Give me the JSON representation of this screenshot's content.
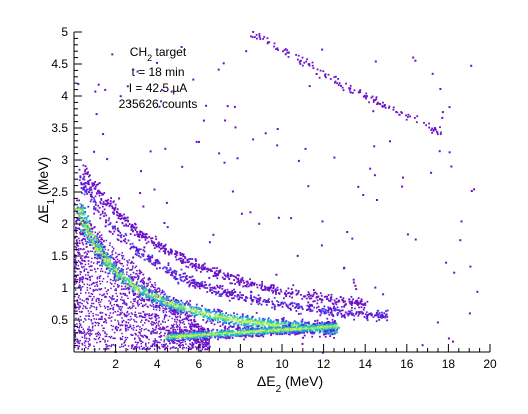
{
  "chart_data": {
    "type": "heatmap",
    "title": "",
    "xlabel": {
      "main": "ΔE",
      "sub": "2",
      "unit": " (MeV)"
    },
    "ylabel": {
      "main": "ΔE",
      "sub": "1",
      "unit": " (MeV)"
    },
    "xlim": [
      0,
      20
    ],
    "ylim": [
      0,
      5
    ],
    "x_ticks": [
      "2",
      "4",
      "6",
      "8",
      "10",
      "12",
      "14",
      "16",
      "18",
      "20"
    ],
    "y_ticks": [
      "0.5",
      "1",
      "1.5",
      "2",
      "2.5",
      "3",
      "3.5",
      "4",
      "4.5",
      "5"
    ],
    "grid": false,
    "legend": "none",
    "annotations": {
      "target": {
        "main": "CH",
        "sub": "2",
        "rest": " target"
      },
      "time": "t = 18 min",
      "current": "I = 42.5 µA",
      "counts": "235626 counts"
    },
    "colorscale": [
      "#6a10c8",
      "#4a3df0",
      "#1fa0e0",
      "#18c8b0",
      "#6de08a",
      "#c8f050"
    ],
    "bands": [
      {
        "name": "",
        "points": [
          [
            0.2,
            2.3
          ],
          [
            0.5,
            2.0
          ],
          [
            1,
            1.7
          ],
          [
            1.5,
            1.45
          ],
          [
            2,
            1.25
          ],
          [
            3,
            1.0
          ],
          [
            4,
            0.85
          ],
          [
            5,
            0.72
          ],
          [
            6,
            0.63
          ],
          [
            7,
            0.56
          ],
          [
            8,
            0.5
          ],
          [
            9,
            0.46
          ],
          [
            10,
            0.42
          ],
          [
            11,
            0.4
          ],
          [
            12,
            0.38
          ],
          [
            12.5,
            0.37
          ]
        ],
        "peak_density": 1.0
      },
      {
        "name": "",
        "points": [
          [
            4.5,
            0.25
          ],
          [
            6,
            0.28
          ],
          [
            8,
            0.32
          ],
          [
            10,
            0.36
          ],
          [
            12,
            0.4
          ],
          [
            12.5,
            0.42
          ]
        ],
        "peak_density": 0.7
      },
      {
        "name": "",
        "points": [
          [
            0.3,
            2.7
          ],
          [
            1,
            2.3
          ],
          [
            2,
            1.9
          ],
          [
            3,
            1.6
          ],
          [
            4,
            1.38
          ],
          [
            5,
            1.2
          ],
          [
            6,
            1.07
          ],
          [
            7,
            0.97
          ],
          [
            8,
            0.88
          ],
          [
            9,
            0.81
          ],
          [
            10,
            0.75
          ],
          [
            11,
            0.7
          ],
          [
            12,
            0.66
          ],
          [
            13,
            0.63
          ],
          [
            14,
            0.6
          ],
          [
            15,
            0.58
          ]
        ],
        "peak_density": 0.35
      },
      {
        "name": "",
        "points": [
          [
            0.3,
            2.9
          ],
          [
            1,
            2.55
          ],
          [
            2,
            2.2
          ],
          [
            3,
            1.9
          ],
          [
            4,
            1.68
          ],
          [
            5,
            1.5
          ],
          [
            6,
            1.35
          ],
          [
            7,
            1.22
          ],
          [
            8,
            1.12
          ],
          [
            9,
            1.03
          ],
          [
            10,
            0.96
          ],
          [
            11,
            0.9
          ],
          [
            12,
            0.85
          ],
          [
            13,
            0.8
          ],
          [
            14,
            0.76
          ]
        ],
        "peak_density": 0.3
      },
      {
        "name": "",
        "points": [
          [
            8.5,
            5.0
          ],
          [
            10,
            4.75
          ],
          [
            11,
            4.55
          ],
          [
            12,
            4.35
          ],
          [
            13,
            4.15
          ],
          [
            14,
            4.0
          ],
          [
            15,
            3.85
          ],
          [
            16,
            3.7
          ],
          [
            17,
            3.55
          ],
          [
            17.5,
            3.45
          ]
        ],
        "peak_density": 0.15
      }
    ]
  }
}
